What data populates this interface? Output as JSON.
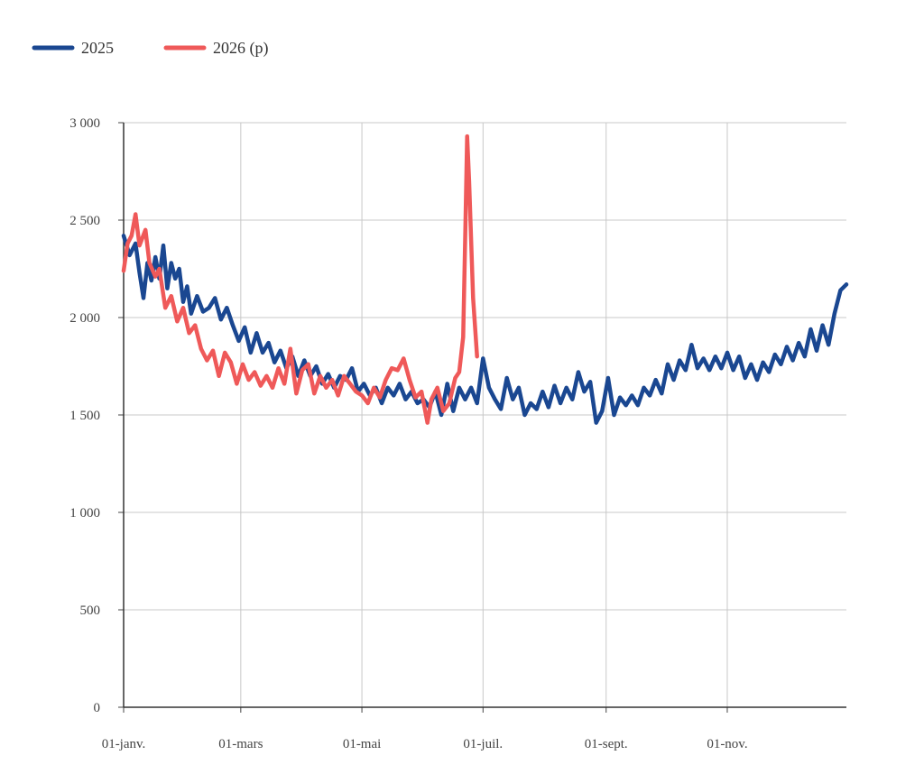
{
  "chart_data": {
    "type": "line",
    "title": "",
    "xlabel": "",
    "ylabel": "",
    "ylim": [
      0,
      3000
    ],
    "yticks": [
      0,
      500,
      1000,
      1500,
      2000,
      2500,
      3000
    ],
    "ytick_labels": [
      "0",
      "500",
      "1 000",
      "1 500",
      "2 000",
      "2 500",
      "3 000"
    ],
    "xlim": [
      "01-janv.",
      "31-déc."
    ],
    "xticks": [
      {
        "label": "01-janv.",
        "date": "01-01"
      },
      {
        "label": "01-mars",
        "date": "03-01"
      },
      {
        "label": "01-mai",
        "date": "05-01"
      },
      {
        "label": "01-juil.",
        "date": "07-01"
      },
      {
        "label": "01-sept.",
        "date": "09-01"
      },
      {
        "label": "01-nov.",
        "date": "11-01"
      }
    ],
    "grid": true,
    "legend_position": "top-left",
    "series": [
      {
        "name": "2025",
        "color": "#1a4791",
        "points": [
          [
            "01-01",
            2420
          ],
          [
            "01-04",
            2320
          ],
          [
            "01-07",
            2380
          ],
          [
            "01-09",
            2230
          ],
          [
            "01-11",
            2100
          ],
          [
            "01-13",
            2280
          ],
          [
            "01-15",
            2190
          ],
          [
            "01-17",
            2310
          ],
          [
            "01-19",
            2200
          ],
          [
            "01-21",
            2370
          ],
          [
            "01-23",
            2150
          ],
          [
            "01-25",
            2280
          ],
          [
            "01-27",
            2200
          ],
          [
            "01-29",
            2250
          ],
          [
            "01-31",
            2080
          ],
          [
            "02-02",
            2160
          ],
          [
            "02-04",
            2020
          ],
          [
            "02-07",
            2110
          ],
          [
            "02-10",
            2030
          ],
          [
            "02-13",
            2050
          ],
          [
            "02-16",
            2100
          ],
          [
            "02-19",
            1990
          ],
          [
            "02-22",
            2050
          ],
          [
            "02-25",
            1960
          ],
          [
            "02-28",
            1880
          ],
          [
            "03-03",
            1950
          ],
          [
            "03-06",
            1820
          ],
          [
            "03-09",
            1920
          ],
          [
            "03-12",
            1820
          ],
          [
            "03-15",
            1870
          ],
          [
            "03-18",
            1770
          ],
          [
            "03-21",
            1830
          ],
          [
            "03-24",
            1740
          ],
          [
            "03-27",
            1800
          ],
          [
            "03-30",
            1700
          ],
          [
            "04-02",
            1780
          ],
          [
            "04-05",
            1700
          ],
          [
            "04-08",
            1750
          ],
          [
            "04-11",
            1660
          ],
          [
            "04-14",
            1710
          ],
          [
            "04-17",
            1640
          ],
          [
            "04-20",
            1700
          ],
          [
            "04-23",
            1680
          ],
          [
            "04-26",
            1740
          ],
          [
            "04-29",
            1620
          ],
          [
            "05-02",
            1660
          ],
          [
            "05-05",
            1600
          ],
          [
            "05-08",
            1640
          ],
          [
            "05-11",
            1560
          ],
          [
            "05-14",
            1640
          ],
          [
            "05-17",
            1600
          ],
          [
            "05-20",
            1660
          ],
          [
            "05-23",
            1580
          ],
          [
            "05-26",
            1620
          ],
          [
            "05-29",
            1560
          ],
          [
            "06-01",
            1580
          ],
          [
            "06-04",
            1540
          ],
          [
            "06-07",
            1620
          ],
          [
            "06-10",
            1500
          ],
          [
            "06-13",
            1660
          ],
          [
            "06-16",
            1520
          ],
          [
            "06-19",
            1640
          ],
          [
            "06-22",
            1580
          ],
          [
            "06-25",
            1640
          ],
          [
            "06-28",
            1560
          ],
          [
            "07-01",
            1790
          ],
          [
            "07-04",
            1640
          ],
          [
            "07-07",
            1580
          ],
          [
            "07-10",
            1530
          ],
          [
            "07-13",
            1690
          ],
          [
            "07-16",
            1580
          ],
          [
            "07-19",
            1640
          ],
          [
            "07-22",
            1500
          ],
          [
            "07-25",
            1560
          ],
          [
            "07-28",
            1530
          ],
          [
            "07-31",
            1620
          ],
          [
            "08-03",
            1540
          ],
          [
            "08-06",
            1650
          ],
          [
            "08-09",
            1560
          ],
          [
            "08-12",
            1640
          ],
          [
            "08-15",
            1580
          ],
          [
            "08-18",
            1720
          ],
          [
            "08-21",
            1620
          ],
          [
            "08-24",
            1670
          ],
          [
            "08-27",
            1460
          ],
          [
            "08-30",
            1520
          ],
          [
            "09-02",
            1690
          ],
          [
            "09-05",
            1500
          ],
          [
            "09-08",
            1590
          ],
          [
            "09-11",
            1550
          ],
          [
            "09-14",
            1600
          ],
          [
            "09-17",
            1550
          ],
          [
            "09-20",
            1640
          ],
          [
            "09-23",
            1600
          ],
          [
            "09-26",
            1680
          ],
          [
            "09-29",
            1610
          ],
          [
            "10-02",
            1760
          ],
          [
            "10-05",
            1680
          ],
          [
            "10-08",
            1780
          ],
          [
            "10-11",
            1730
          ],
          [
            "10-14",
            1860
          ],
          [
            "10-17",
            1740
          ],
          [
            "10-20",
            1790
          ],
          [
            "10-23",
            1730
          ],
          [
            "10-26",
            1800
          ],
          [
            "10-29",
            1740
          ],
          [
            "11-01",
            1820
          ],
          [
            "11-04",
            1730
          ],
          [
            "11-07",
            1800
          ],
          [
            "11-10",
            1690
          ],
          [
            "11-13",
            1760
          ],
          [
            "11-16",
            1680
          ],
          [
            "11-19",
            1770
          ],
          [
            "11-22",
            1720
          ],
          [
            "11-25",
            1810
          ],
          [
            "11-28",
            1760
          ],
          [
            "12-01",
            1850
          ],
          [
            "12-04",
            1780
          ],
          [
            "12-07",
            1870
          ],
          [
            "12-10",
            1800
          ],
          [
            "12-13",
            1940
          ],
          [
            "12-16",
            1830
          ],
          [
            "12-19",
            1960
          ],
          [
            "12-22",
            1860
          ],
          [
            "12-25",
            2020
          ],
          [
            "12-28",
            2140
          ],
          [
            "12-31",
            2170
          ]
        ]
      },
      {
        "name": "2026 (p)",
        "color": "#ef5959",
        "points": [
          [
            "01-01",
            2240
          ],
          [
            "01-03",
            2380
          ],
          [
            "01-05",
            2420
          ],
          [
            "01-07",
            2530
          ],
          [
            "01-09",
            2370
          ],
          [
            "01-12",
            2450
          ],
          [
            "01-14",
            2280
          ],
          [
            "01-17",
            2210
          ],
          [
            "01-19",
            2250
          ],
          [
            "01-22",
            2050
          ],
          [
            "01-25",
            2110
          ],
          [
            "01-28",
            1980
          ],
          [
            "01-31",
            2050
          ],
          [
            "02-03",
            1920
          ],
          [
            "02-06",
            1960
          ],
          [
            "02-09",
            1840
          ],
          [
            "02-12",
            1780
          ],
          [
            "02-15",
            1830
          ],
          [
            "02-18",
            1700
          ],
          [
            "02-21",
            1820
          ],
          [
            "02-24",
            1770
          ],
          [
            "02-27",
            1660
          ],
          [
            "03-02",
            1760
          ],
          [
            "03-05",
            1680
          ],
          [
            "03-08",
            1720
          ],
          [
            "03-11",
            1650
          ],
          [
            "03-14",
            1700
          ],
          [
            "03-17",
            1640
          ],
          [
            "03-20",
            1740
          ],
          [
            "03-23",
            1660
          ],
          [
            "03-26",
            1840
          ],
          [
            "03-29",
            1610
          ],
          [
            "04-01",
            1730
          ],
          [
            "04-04",
            1760
          ],
          [
            "04-07",
            1610
          ],
          [
            "04-10",
            1700
          ],
          [
            "04-13",
            1640
          ],
          [
            "04-16",
            1680
          ],
          [
            "04-19",
            1600
          ],
          [
            "04-22",
            1700
          ],
          [
            "04-25",
            1660
          ],
          [
            "04-28",
            1620
          ],
          [
            "05-01",
            1600
          ],
          [
            "05-04",
            1560
          ],
          [
            "05-07",
            1640
          ],
          [
            "05-10",
            1590
          ],
          [
            "05-13",
            1680
          ],
          [
            "05-16",
            1740
          ],
          [
            "05-19",
            1730
          ],
          [
            "05-22",
            1790
          ],
          [
            "05-25",
            1680
          ],
          [
            "05-28",
            1590
          ],
          [
            "05-31",
            1620
          ],
          [
            "06-03",
            1460
          ],
          [
            "06-05",
            1580
          ],
          [
            "06-08",
            1640
          ],
          [
            "06-11",
            1520
          ],
          [
            "06-14",
            1560
          ],
          [
            "06-17",
            1690
          ],
          [
            "06-19",
            1720
          ],
          [
            "06-21",
            1900
          ],
          [
            "06-22",
            2400
          ],
          [
            "06-23",
            2930
          ],
          [
            "06-24",
            2700
          ],
          [
            "06-26",
            2100
          ],
          [
            "06-28",
            1800
          ]
        ]
      }
    ]
  }
}
